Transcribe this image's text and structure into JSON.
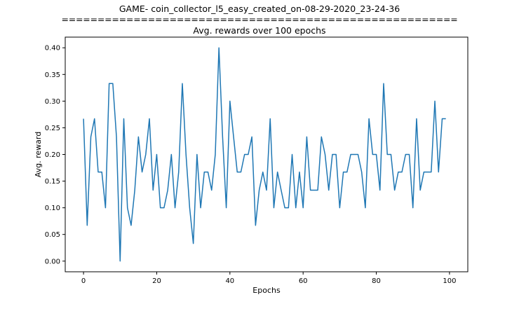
{
  "chart_data": {
    "type": "line",
    "title_lines": [
      "GAME- coin_collector_l5_easy_created_on-08-29-2020_23-24-36",
      "=======================================================",
      "Avg. rewards over 100 epochs"
    ],
    "xlabel": "Epochs",
    "ylabel": "Avg. reward",
    "xlim": [
      -5,
      105
    ],
    "ylim": [
      -0.02,
      0.42
    ],
    "xticks": [
      0,
      20,
      40,
      60,
      80,
      100
    ],
    "yticks": [
      0.0,
      0.05,
      0.1,
      0.15,
      0.2,
      0.25,
      0.3,
      0.35,
      0.4
    ],
    "grid": false,
    "line_color": "#1f77b4",
    "series": [
      {
        "values": [
          0.267,
          0.067,
          0.233,
          0.267,
          0.167,
          0.167,
          0.1,
          0.333,
          0.333,
          0.233,
          0.0,
          0.267,
          0.1,
          0.067,
          0.133,
          0.233,
          0.167,
          0.2,
          0.267,
          0.133,
          0.2,
          0.1,
          0.1,
          0.133,
          0.2,
          0.1,
          0.167,
          0.333,
          0.2,
          0.1,
          0.033,
          0.2,
          0.1,
          0.167,
          0.167,
          0.133,
          0.2,
          0.4,
          0.233,
          0.1,
          0.3,
          0.233,
          0.167,
          0.167,
          0.2,
          0.2,
          0.233,
          0.067,
          0.133,
          0.167,
          0.133,
          0.267,
          0.1,
          0.167,
          0.133,
          0.1,
          0.1,
          0.2,
          0.1,
          0.167,
          0.1,
          0.233,
          0.133,
          0.133,
          0.133,
          0.233,
          0.2,
          0.133,
          0.2,
          0.2,
          0.1,
          0.167,
          0.167,
          0.2,
          0.2,
          0.2,
          0.167,
          0.1,
          0.267,
          0.2,
          0.2,
          0.133,
          0.333,
          0.2,
          0.2,
          0.133,
          0.167,
          0.167,
          0.2,
          0.2,
          0.1,
          0.267,
          0.133,
          0.167,
          0.167,
          0.167,
          0.3,
          0.167,
          0.267,
          0.267
        ]
      }
    ]
  }
}
